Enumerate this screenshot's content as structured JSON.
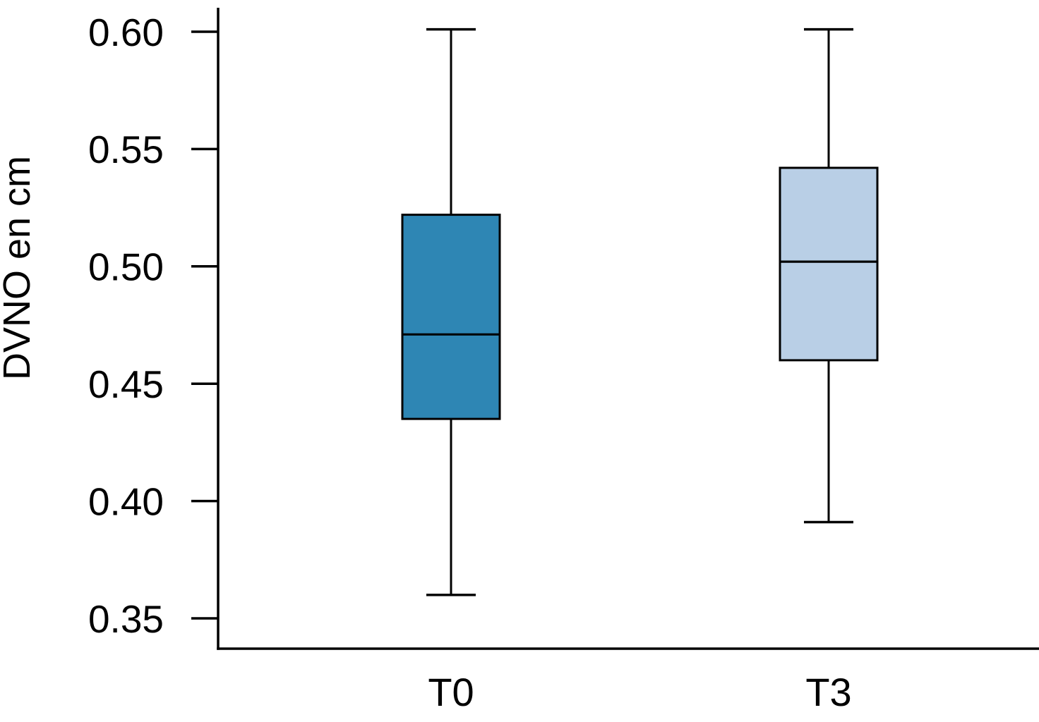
{
  "figure": {
    "background": "#ffffff",
    "axis_color": "#000000"
  },
  "chart_data": {
    "type": "boxplot",
    "title": "",
    "xlabel": "",
    "ylabel": "DVNO en cm",
    "categories": [
      "T0",
      "T3"
    ],
    "y_ticks": [
      0.6,
      0.55,
      0.5,
      0.45,
      0.4,
      0.35
    ],
    "y_tick_labels": [
      "0.60",
      "0.55",
      "0.50",
      "0.45",
      "0.40",
      "0.35"
    ],
    "ylim": [
      0.337,
      0.61
    ],
    "grid": false,
    "legend": "none",
    "series": [
      {
        "name": "T0",
        "min": 0.36,
        "q1": 0.435,
        "median": 0.471,
        "q3": 0.522,
        "max": 0.601,
        "fill": "#2E86B4"
      },
      {
        "name": "T3",
        "min": 0.391,
        "q1": 0.46,
        "median": 0.502,
        "q3": 0.542,
        "max": 0.601,
        "fill": "#B9CFE6"
      }
    ],
    "box_stroke": "#000000"
  }
}
